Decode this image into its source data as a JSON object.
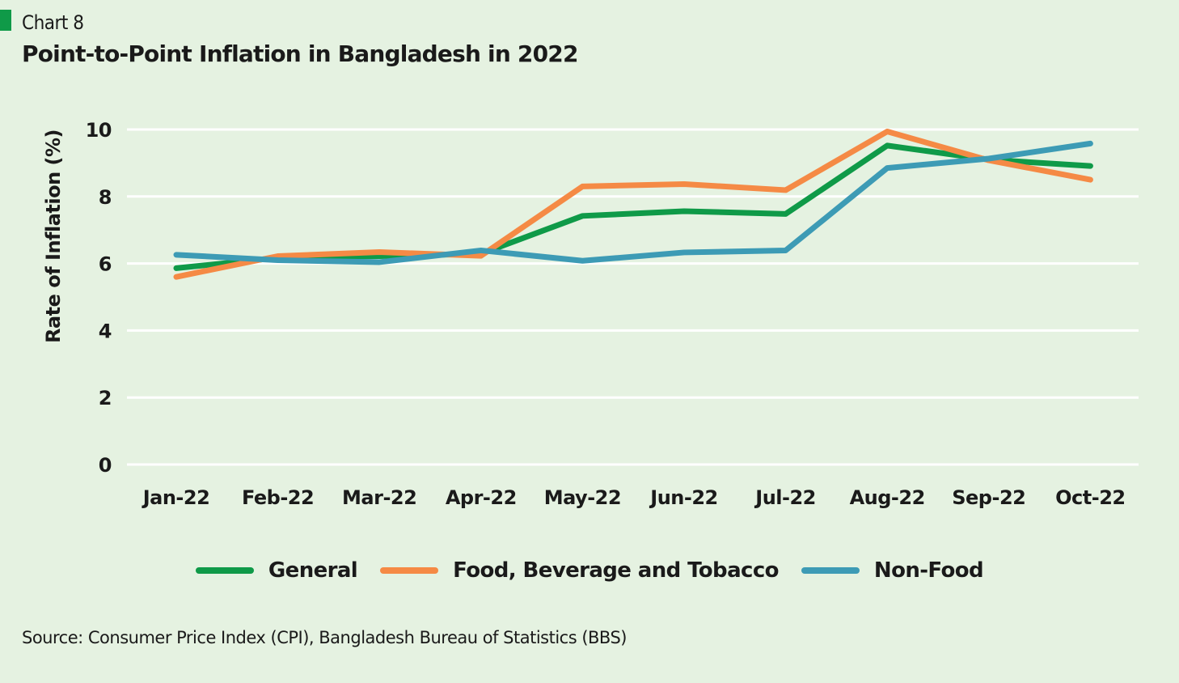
{
  "header": {
    "label": "Chart 8",
    "title": "Point-to-Point Inflation in Bangladesh in 2022"
  },
  "source": "Source: Consumer Price Index (CPI), Bangladesh Bureau of Statistics (BBS)",
  "chart_data": {
    "type": "line",
    "title": "Point-to-Point Inflation in Bangladesh in 2022",
    "xlabel": "",
    "ylabel": "Rate of Inflation (%)",
    "ylim": [
      0,
      10
    ],
    "yticks": [
      0,
      2,
      4,
      6,
      8,
      10
    ],
    "grid": true,
    "legend_position": "bottom",
    "categories": [
      "Jan-22",
      "Feb-22",
      "Mar-22",
      "Apr-22",
      "May-22",
      "Jun-22",
      "Jul-22",
      "Aug-22",
      "Sep-22",
      "Oct-22"
    ],
    "series": [
      {
        "name": "General",
        "color": "#0f9a48",
        "values": [
          5.86,
          6.17,
          6.22,
          6.29,
          7.42,
          7.56,
          7.48,
          9.52,
          9.1,
          8.91
        ]
      },
      {
        "name": "Food, Beverage and Tobacco",
        "color": "#f58a45",
        "values": [
          5.6,
          6.22,
          6.34,
          6.23,
          8.3,
          8.37,
          8.19,
          9.94,
          9.08,
          8.5
        ]
      },
      {
        "name": "Non-Food",
        "color": "#3d9bb5",
        "values": [
          6.26,
          6.1,
          6.04,
          6.39,
          6.08,
          6.33,
          6.39,
          8.85,
          9.13,
          9.58
        ]
      }
    ]
  }
}
